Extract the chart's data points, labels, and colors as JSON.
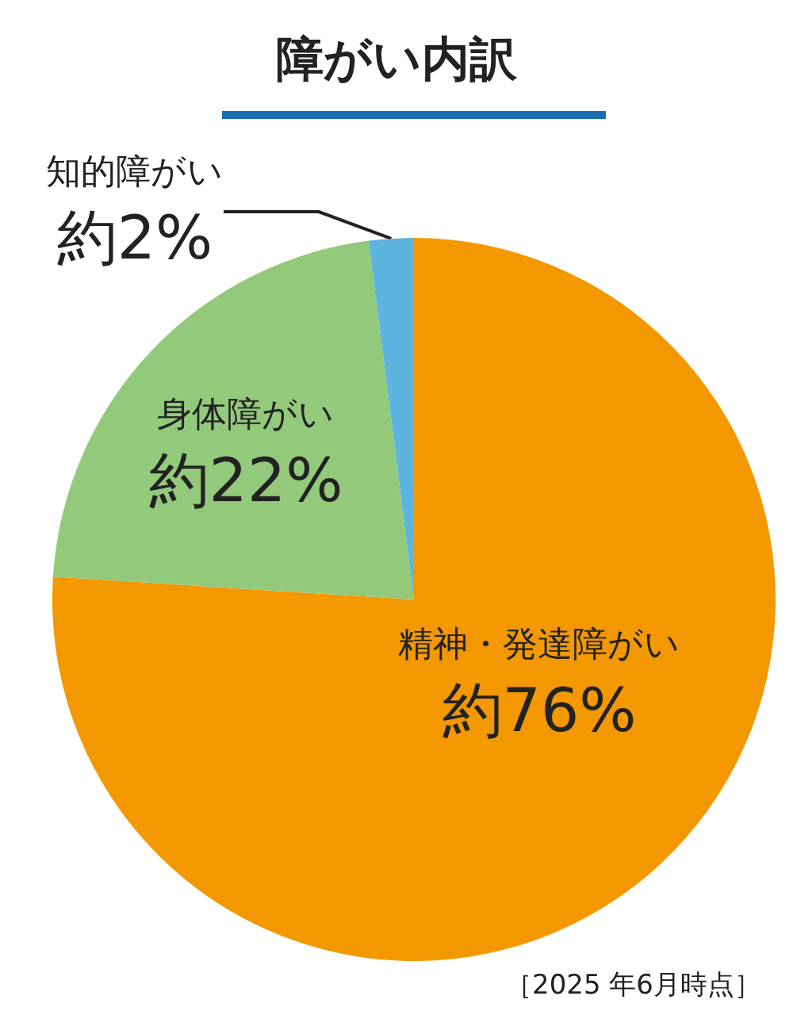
{
  "chart_data": {
    "type": "pie",
    "title": "障がい内訳",
    "categories": [
      "精神・発達障がい",
      "身体障がい",
      "知的障がい"
    ],
    "values": [
      76,
      22,
      2
    ],
    "colors": [
      "#f39800",
      "#93c97b",
      "#5bb5de"
    ],
    "value_labels": [
      "約76%",
      "約22%",
      "約2%"
    ],
    "annotations": [
      "［2025 年6月時点］"
    ]
  }
}
